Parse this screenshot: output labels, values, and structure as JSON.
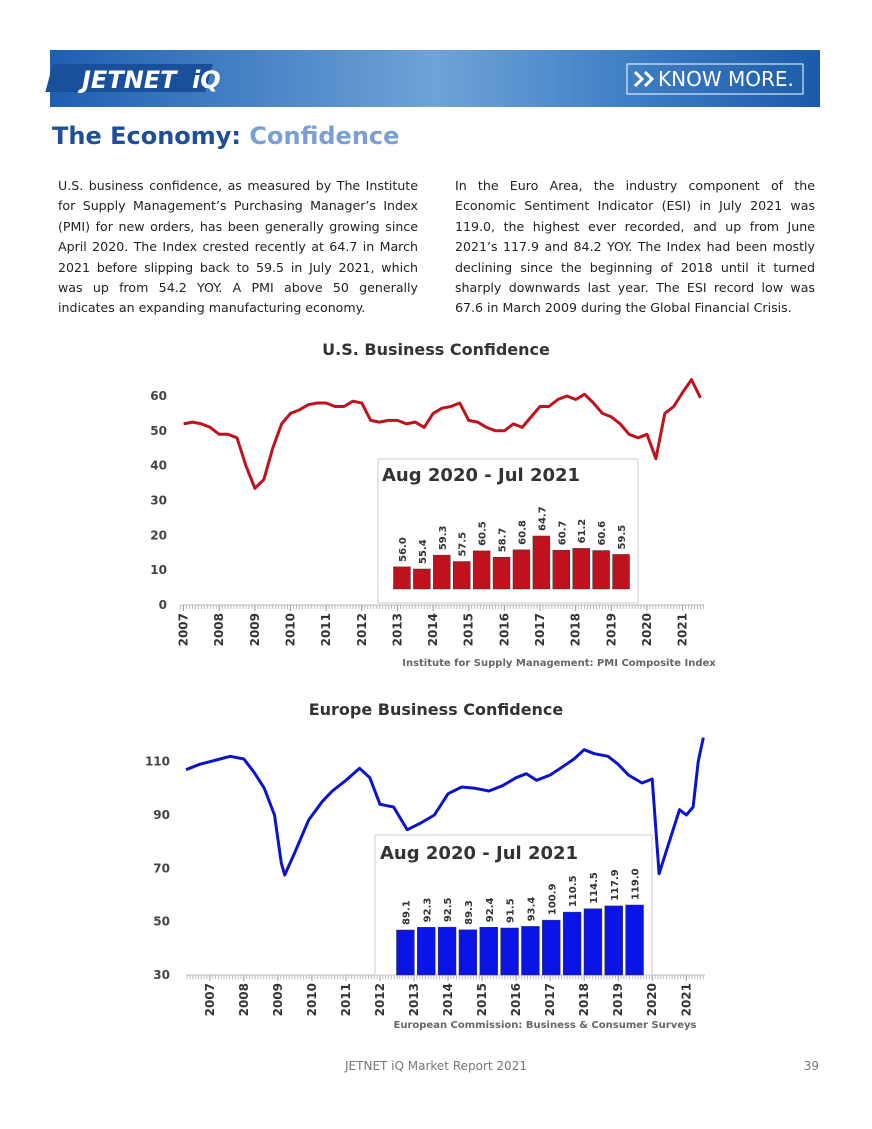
{
  "header": {
    "logo": "JETNET",
    "logo_suffix": "iQ",
    "button": "KNOW MORE."
  },
  "title": {
    "main": "The Economy:",
    "sub": "Confidence"
  },
  "paragraphs": [
    "U.S. business confidence, as measured by The Institute for Supply Management’s Purchasing Manager’s Index (PMI) for new orders, has been generally growing since April 2020. The Index crested recently at 64.7 in March 2021 before slipping back to 59.5 in July 2021, which was up from 54.2 YOY. A PMI above 50 generally indicates an expanding manufacturing economy.",
    "In the Euro Area, the industry component of the Economic Sentiment Indicator (ESI) in July 2021 was 119.0, the highest ever recorded, and up from June 2021’s 117.9 and 84.2 YOY. The Index had been mostly declining since the beginning of 2018 until it turned sharply downwards last year. The ESI record low was 67.6 in March 2009 during the Global Financial Crisis."
  ],
  "chart_data": [
    {
      "type": "line",
      "title": "U.S. Business Confidence",
      "source": "Institute for Supply Management: PMI Composite Index",
      "color": "#c0121c",
      "x": [
        2007,
        2007.25,
        2007.5,
        2007.75,
        2008,
        2008.25,
        2008.5,
        2008.75,
        2009,
        2009.25,
        2009.5,
        2009.75,
        2010,
        2010.25,
        2010.5,
        2010.75,
        2011,
        2011.25,
        2011.5,
        2011.75,
        2012,
        2012.25,
        2012.5,
        2012.75,
        2013,
        2013.25,
        2013.5,
        2013.75,
        2014,
        2014.25,
        2014.5,
        2014.75,
        2015,
        2015.25,
        2015.5,
        2015.75,
        2016,
        2016.25,
        2016.5,
        2016.75,
        2017,
        2017.25,
        2017.5,
        2017.75,
        2018,
        2018.25,
        2018.5,
        2018.75,
        2019,
        2019.25,
        2019.5,
        2019.75,
        2020,
        2020.25,
        2020.5,
        2020.75,
        2021,
        2021.25,
        2021.5
      ],
      "values": [
        52,
        52.5,
        52,
        51,
        49,
        49,
        48,
        40,
        33.5,
        36,
        45,
        52,
        55,
        56,
        57.5,
        58,
        58,
        57,
        57,
        58.5,
        58,
        53,
        52.5,
        53,
        53,
        52,
        52.5,
        51,
        55,
        56.5,
        57,
        58,
        53,
        52.5,
        51,
        50,
        50,
        52,
        51,
        54,
        57,
        57,
        59,
        60,
        59,
        60.5,
        58,
        55,
        54,
        52,
        49,
        48,
        49,
        42,
        55,
        57,
        61,
        64.7,
        59.5
      ],
      "xlim": [
        2006.9,
        2021.6
      ],
      "ylim": [
        0,
        65
      ],
      "xticks": [
        2007,
        2008,
        2009,
        2010,
        2011,
        2012,
        2013,
        2014,
        2015,
        2016,
        2017,
        2018,
        2019,
        2020,
        2021
      ],
      "yticks": [
        0,
        10,
        20,
        30,
        40,
        50,
        60
      ]
    },
    {
      "type": "bar",
      "title": "Aug 2020 - Jul 2021",
      "color": "#c0121c",
      "values": [
        56.0,
        55.4,
        59.3,
        57.5,
        60.5,
        58.7,
        60.8,
        64.7,
        60.7,
        61.2,
        60.6,
        59.5
      ],
      "value_labels": [
        "56.0",
        "55.4",
        "59.3",
        "57.5",
        "60.5",
        "58.7",
        "60.8",
        "64.7",
        "60.7",
        "61.2",
        "60.6",
        "59.5"
      ]
    },
    {
      "type": "line",
      "title": "Europe Business Confidence",
      "source": "European Commission: Business & Consumer Surveys",
      "color": "#0a14c8",
      "x": [
        2006.3,
        2006.7,
        2007,
        2007.3,
        2007.6,
        2008,
        2008.3,
        2008.6,
        2008.9,
        2009.1,
        2009.2,
        2009.5,
        2009.9,
        2010.3,
        2010.6,
        2011,
        2011.4,
        2011.7,
        2012,
        2012.4,
        2012.8,
        2013.2,
        2013.6,
        2014,
        2014.4,
        2014.8,
        2015.2,
        2015.6,
        2016,
        2016.3,
        2016.6,
        2017,
        2017.3,
        2017.7,
        2018,
        2018.3,
        2018.7,
        2019,
        2019.3,
        2019.7,
        2020,
        2020.2,
        2020.5,
        2020.8,
        2021,
        2021.2,
        2021.35,
        2021.5
      ],
      "values": [
        107,
        109,
        110,
        111,
        112,
        111,
        106,
        100,
        90,
        72,
        67.5,
        76,
        88,
        95,
        99,
        103,
        107.5,
        104,
        94,
        93,
        84.5,
        87,
        90,
        98,
        100.5,
        100,
        99,
        101,
        104,
        105.5,
        103,
        105,
        107.5,
        111,
        114.5,
        113,
        112,
        109,
        105,
        102,
        103.5,
        68,
        80,
        92,
        90,
        93,
        110,
        119
      ],
      "xlim": [
        2006.3,
        2021.55
      ],
      "ylim": [
        30,
        120
      ],
      "xticks": [
        2007,
        2008,
        2009,
        2010,
        2011,
        2012,
        2013,
        2014,
        2015,
        2016,
        2017,
        2018,
        2019,
        2020,
        2021
      ],
      "yticks": [
        30,
        50,
        70,
        90,
        110
      ]
    },
    {
      "type": "bar",
      "title": "Aug 2020 - Jul 2021",
      "color": "#0a14e6",
      "values": [
        89.1,
        92.3,
        92.5,
        89.3,
        92.4,
        91.5,
        93.4,
        100.9,
        110.5,
        114.5,
        117.9,
        119.0
      ],
      "value_labels": [
        "89.1",
        "92.3",
        "92.5",
        "89.3",
        "92.4",
        "91.5",
        "93.4",
        "100.9",
        "110.5",
        "114.5",
        "117.9",
        "119.0"
      ]
    }
  ],
  "footer": {
    "text": "JETNET iQ Market Report  2021",
    "page": "39"
  }
}
